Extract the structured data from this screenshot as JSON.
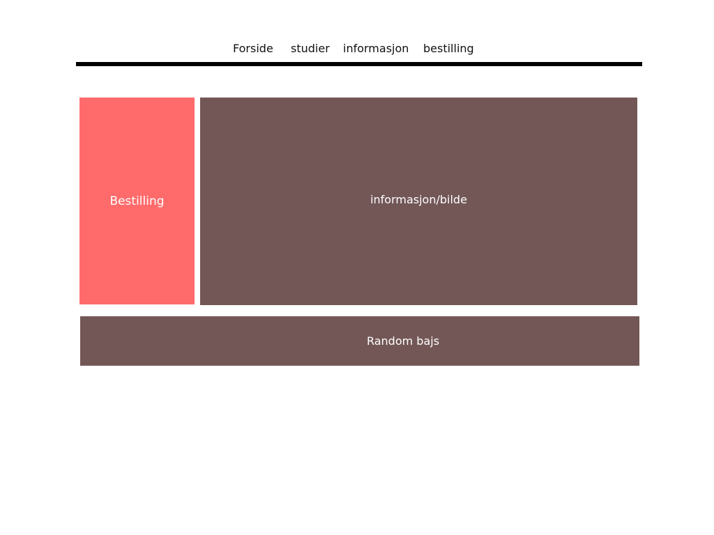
{
  "nav": {
    "items": [
      {
        "label": "Forside"
      },
      {
        "label": "studier"
      },
      {
        "label": "informasjon"
      },
      {
        "label": "bestilling"
      }
    ]
  },
  "sections": {
    "order": {
      "label": "Bestilling",
      "color": "#ff6b6b"
    },
    "info": {
      "label": "informasjon/bilde",
      "color": "#735757"
    },
    "random": {
      "label": "Random bajs",
      "color": "#735757"
    }
  },
  "colors": {
    "rule": "#000000",
    "background": "#ffffff"
  }
}
